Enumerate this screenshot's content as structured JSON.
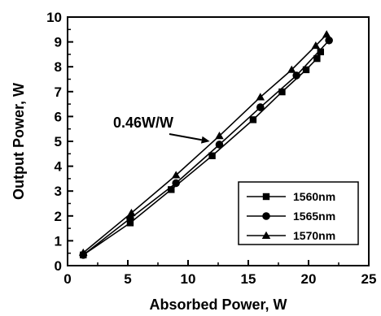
{
  "chart_data": {
    "type": "line",
    "xlabel": "Absorbed Power, W",
    "ylabel": "Output Power, W",
    "xlim": [
      0,
      25
    ],
    "ylim": [
      0,
      10
    ],
    "xticks": [
      "0",
      "5",
      "10",
      "15",
      "20",
      "25"
    ],
    "yticks": [
      "0",
      "1",
      "2",
      "3",
      "4",
      "5",
      "6",
      "7",
      "8",
      "9",
      "10"
    ],
    "grid": false,
    "legend_position": "bottom-right",
    "annotation": {
      "text": "0.46W/W",
      "points_to": {
        "x": 11.8,
        "y": 5.0
      }
    },
    "series": [
      {
        "name": "1560nm",
        "marker": "square",
        "x": [
          1.3,
          5.2,
          8.6,
          12.0,
          15.4,
          17.8,
          19.8,
          20.7,
          21.0
        ],
        "y": [
          0.43,
          1.72,
          3.06,
          4.42,
          5.87,
          6.99,
          7.88,
          8.33,
          8.6
        ]
      },
      {
        "name": "1565nm",
        "marker": "circle",
        "x": [
          1.3,
          5.2,
          9.0,
          12.6,
          16.0,
          19.0,
          21.7
        ],
        "y": [
          0.43,
          1.9,
          3.32,
          4.87,
          6.37,
          7.65,
          9.06
        ]
      },
      {
        "name": "1570nm",
        "marker": "triangle",
        "x": [
          1.3,
          5.3,
          9.0,
          12.6,
          16.0,
          18.6,
          20.6,
          21.5
        ],
        "y": [
          0.52,
          2.12,
          3.64,
          5.22,
          6.78,
          7.88,
          8.85,
          9.3
        ]
      }
    ]
  }
}
